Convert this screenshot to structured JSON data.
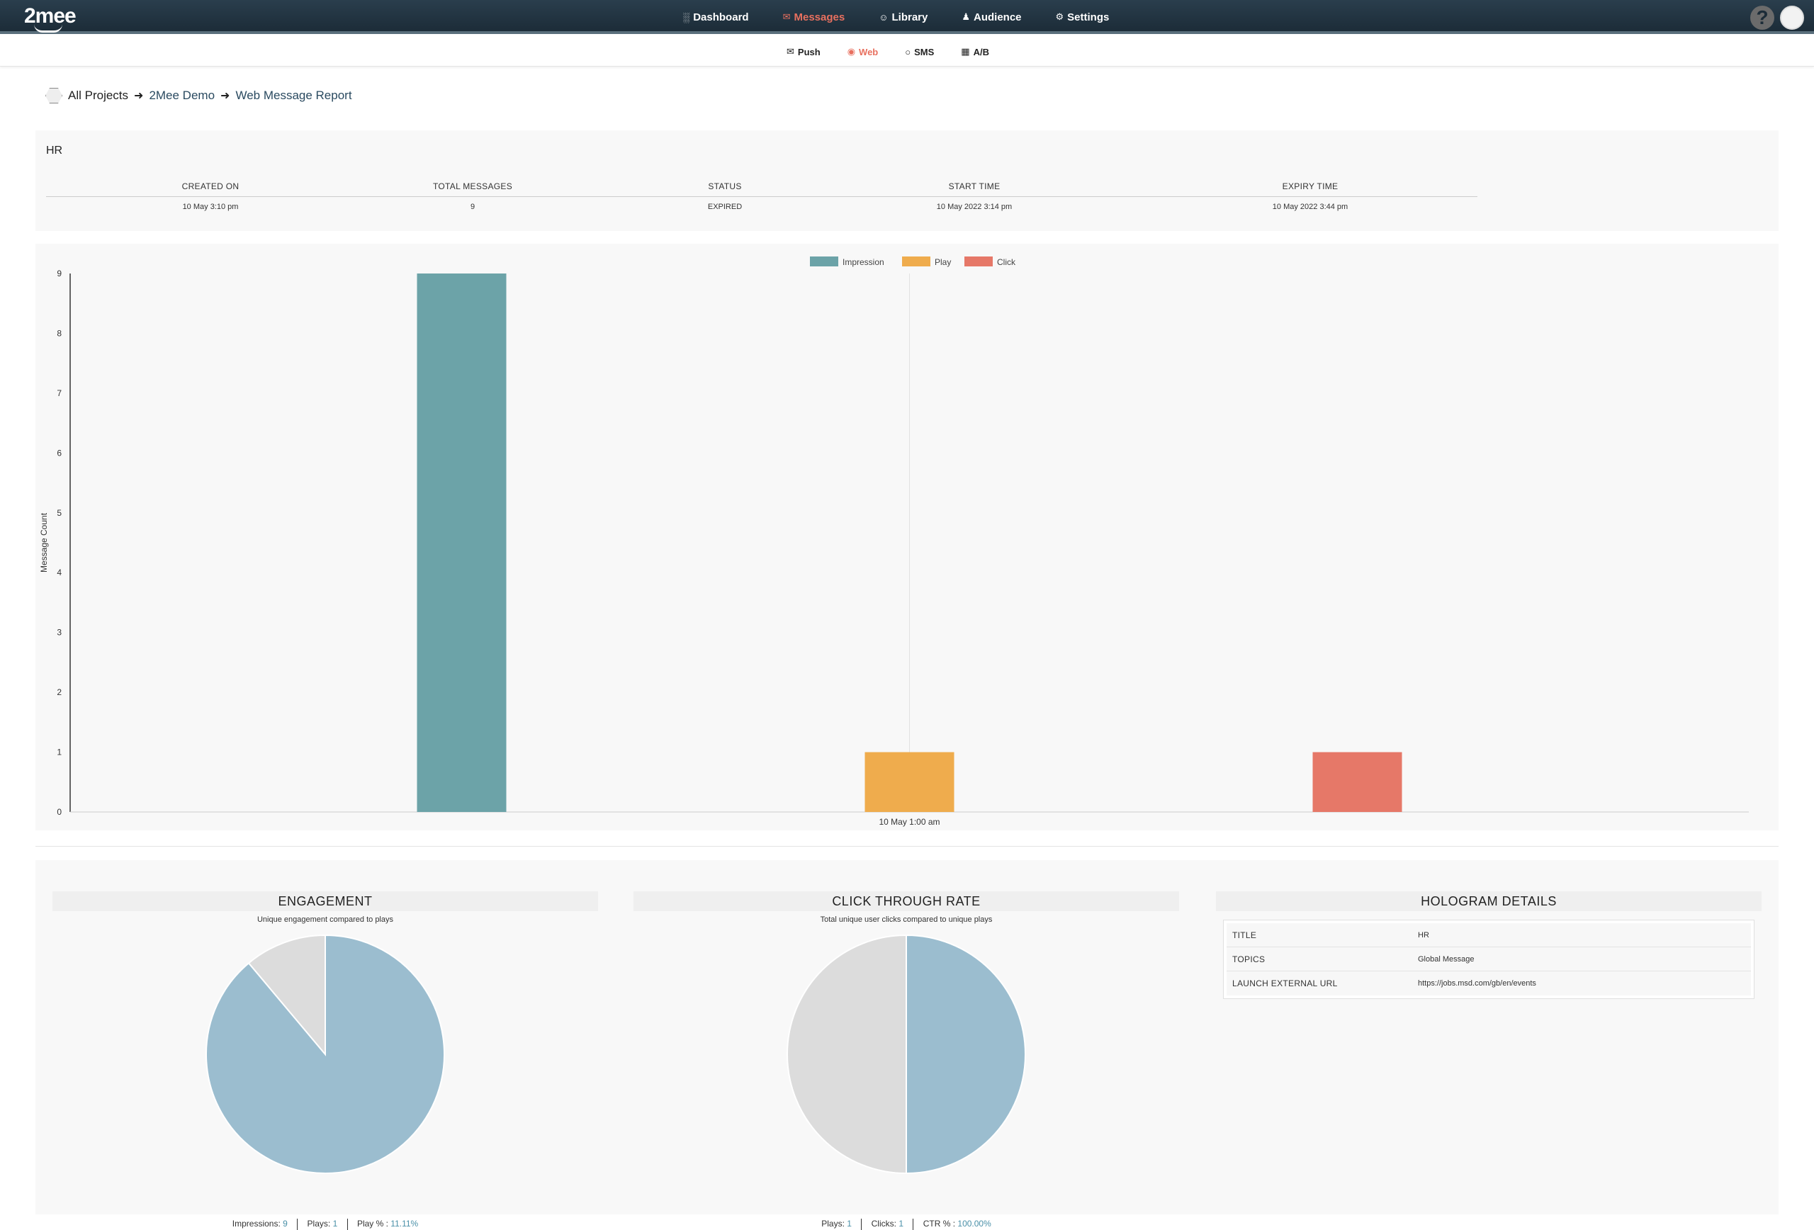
{
  "app": {
    "logo": "2mee"
  },
  "nav": {
    "items": [
      {
        "label": "Dashboard",
        "icon": "bar-chart-icon",
        "active": false
      },
      {
        "label": "Messages",
        "icon": "envelope-icon",
        "active": true
      },
      {
        "label": "Library",
        "icon": "smiley-icon",
        "active": false
      },
      {
        "label": "Audience",
        "icon": "users-icon",
        "active": false
      },
      {
        "label": "Settings",
        "icon": "gears-icon",
        "active": false
      }
    ],
    "help": "?"
  },
  "subnav": {
    "items": [
      {
        "label": "Push",
        "icon": "envelope-icon",
        "active": false
      },
      {
        "label": "Web",
        "icon": "globe-icon",
        "active": true
      },
      {
        "label": "SMS",
        "icon": "speech-bubble-icon",
        "active": false
      },
      {
        "label": "A/B",
        "icon": "ab-test-icon",
        "active": false
      }
    ]
  },
  "breadcrumb": {
    "root": "All Projects",
    "project": "2Mee Demo",
    "page": "Web Message Report"
  },
  "info": {
    "title": "HR",
    "headers": [
      "CREATED ON",
      "TOTAL MESSAGES",
      "STATUS",
      "START TIME",
      "EXPIRY TIME"
    ],
    "values": [
      "10 May 3:10 pm",
      "9",
      "EXPIRED",
      "10 May 2022 3:14 pm",
      "10 May 2022 3:44 pm"
    ]
  },
  "chart_data": [
    {
      "type": "bar",
      "categories": [
        "10 May 1:00 am"
      ],
      "series": [
        {
          "name": "Impression",
          "values": [
            9
          ],
          "color": "#6ca3a8"
        },
        {
          "name": "Play",
          "values": [
            1
          ],
          "color": "#efac4d"
        },
        {
          "name": "Click",
          "values": [
            1
          ],
          "color": "#e67868"
        }
      ],
      "xlabel": "",
      "ylabel": "Message Count",
      "ylim": [
        0,
        9
      ],
      "yticks": [
        0,
        1,
        2,
        3,
        4,
        5,
        6,
        7,
        8,
        9
      ],
      "legend": "top-center"
    },
    {
      "type": "pie",
      "title": "ENGAGEMENT",
      "subtitle": "Unique engagement compared to plays",
      "slices": [
        {
          "name": "Impressions",
          "value": 8,
          "color": "#9bbdcf"
        },
        {
          "name": "Plays",
          "value": 1,
          "color": "#dcdcdc"
        }
      ]
    },
    {
      "type": "pie",
      "title": "CLICK THROUGH RATE",
      "subtitle": "Total unique user clicks compared to unique plays",
      "slices": [
        {
          "name": "Clicks",
          "value": 1,
          "color": "#9bbdcf"
        },
        {
          "name": "Plays",
          "value": 1,
          "color": "#dcdcdc"
        }
      ]
    }
  ],
  "engagement": {
    "title": "ENGAGEMENT",
    "subtitle": "Unique engagement compared to plays",
    "stats": [
      {
        "label": "Impressions:",
        "value": "9"
      },
      {
        "label": "Plays:",
        "value": "1"
      },
      {
        "label": "Play % :",
        "value": "11.11%"
      }
    ]
  },
  "ctr": {
    "title": "CLICK THROUGH RATE",
    "subtitle": "Total unique user clicks compared to unique plays",
    "stats": [
      {
        "label": "Plays:",
        "value": "1"
      },
      {
        "label": "Clicks:",
        "value": "1"
      },
      {
        "label": "CTR % :",
        "value": "100.00%"
      }
    ]
  },
  "hologram": {
    "title": "HOLOGRAM DETAILS",
    "rows": [
      {
        "key": "TITLE",
        "value": "HR"
      },
      {
        "key": "TOPICS",
        "value": "Global Message"
      },
      {
        "key": "LAUNCH EXTERNAL URL",
        "value": "https://jobs.msd.com/gb/en/events"
      }
    ]
  }
}
